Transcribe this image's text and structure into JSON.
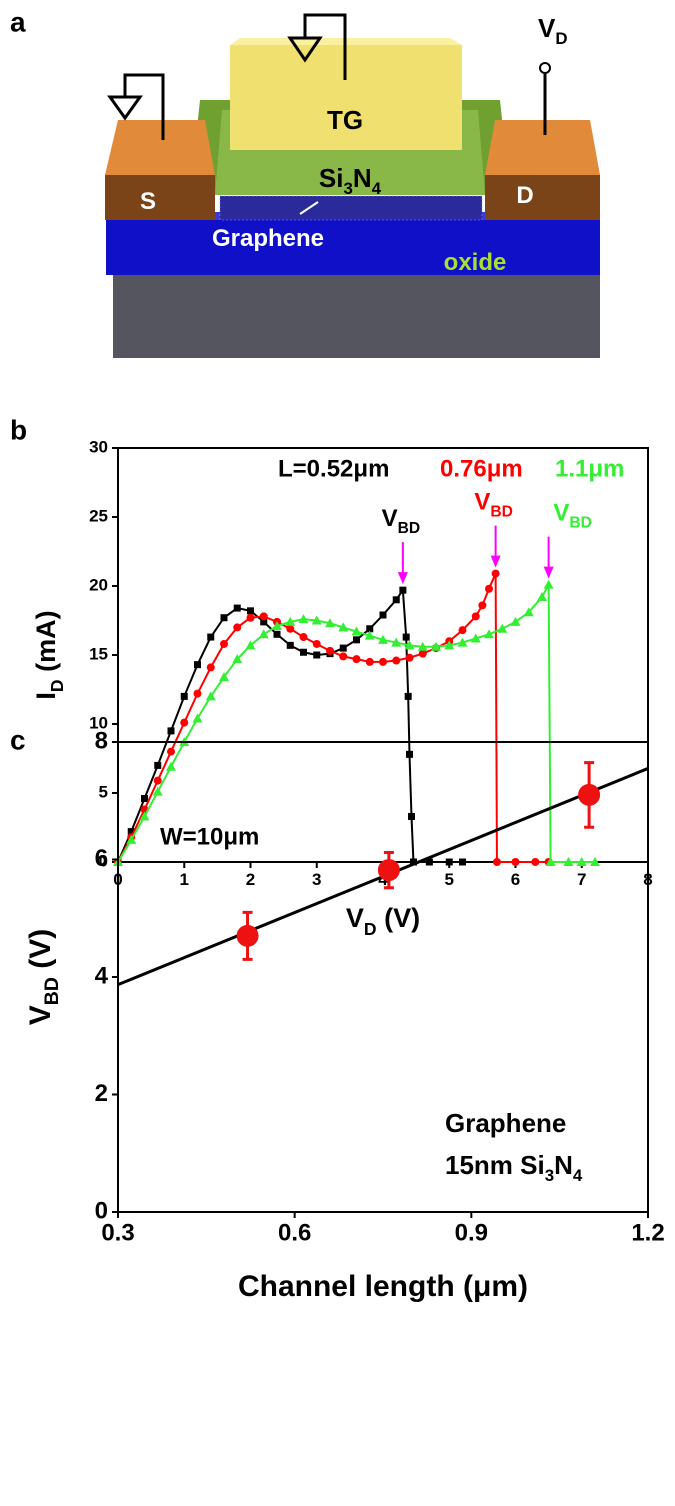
{
  "panels": [
    "a",
    "b",
    "c"
  ],
  "diagram": {
    "labels": {
      "vd": [
        "V",
        "D"
      ],
      "tg": [
        "TG"
      ],
      "si3n4": [
        "Si",
        "3",
        "N",
        "4"
      ],
      "s": [
        "S"
      ],
      "d": [
        "D"
      ],
      "graphene": [
        "Graphene"
      ],
      "oxide": [
        "oxide"
      ]
    }
  },
  "chart_data": [
    {
      "type": "line",
      "x_label": [
        "V",
        "D",
        " (V)"
      ],
      "y_label": [
        "I",
        "D",
        " (mA)"
      ],
      "xlim": [
        0,
        8
      ],
      "xticks": [
        0,
        1,
        2,
        3,
        4,
        5,
        6,
        7,
        8
      ],
      "ylim": [
        0,
        30
      ],
      "yticks": [
        0,
        5,
        10,
        15,
        20,
        25,
        30
      ],
      "note": "W=10μm",
      "series": [
        {
          "color": "#000000",
          "marker": "square",
          "length_label": "L=0.52μm",
          "breakdown_label": [
            "V",
            "BD"
          ],
          "x": [
            0,
            0.2,
            0.4,
            0.6,
            0.8,
            1.0,
            1.2,
            1.4,
            1.6,
            1.8,
            2.0,
            2.2,
            2.4,
            2.6,
            2.8,
            3.0,
            3.2,
            3.4,
            3.6,
            3.8,
            4.0,
            4.2,
            4.3,
            4.35,
            4.38,
            4.4,
            4.43,
            4.46,
            4.7,
            5.0,
            5.2
          ],
          "values": [
            0,
            2.2,
            4.6,
            7,
            9.5,
            12,
            14.3,
            16.3,
            17.7,
            18.4,
            18.2,
            17.4,
            16.5,
            15.7,
            15.2,
            15.0,
            15.1,
            15.5,
            16.1,
            16.9,
            17.9,
            19.0,
            19.7,
            16.3,
            12,
            7.8,
            3.3,
            0,
            0,
            0,
            0
          ]
        },
        {
          "color": "#ff0000",
          "marker": "circle",
          "length_label": "0.76μm",
          "breakdown_label": [
            "V",
            "BD"
          ],
          "x": [
            0,
            0.2,
            0.4,
            0.6,
            0.8,
            1.0,
            1.2,
            1.4,
            1.6,
            1.8,
            2.0,
            2.2,
            2.4,
            2.6,
            2.8,
            3.0,
            3.2,
            3.4,
            3.6,
            3.8,
            4.0,
            4.2,
            4.4,
            4.6,
            4.8,
            5.0,
            5.2,
            5.4,
            5.5,
            5.6,
            5.7,
            5.72,
            6.0,
            6.3,
            6.5
          ],
          "values": [
            0,
            1.8,
            3.8,
            5.9,
            8,
            10.1,
            12.2,
            14.1,
            15.8,
            17.0,
            17.7,
            17.8,
            17.4,
            16.9,
            16.3,
            15.8,
            15.3,
            14.9,
            14.7,
            14.5,
            14.5,
            14.6,
            14.8,
            15.1,
            15.5,
            16.0,
            16.8,
            17.8,
            18.6,
            19.8,
            20.9,
            0,
            0,
            0,
            0
          ]
        },
        {
          "color": "#33ee33",
          "marker": "triangle",
          "length_label": "1.1μm",
          "breakdown_label": [
            "V",
            "BD"
          ],
          "x": [
            0,
            0.2,
            0.4,
            0.6,
            0.8,
            1.0,
            1.2,
            1.4,
            1.6,
            1.8,
            2.0,
            2.2,
            2.4,
            2.6,
            2.8,
            3.0,
            3.2,
            3.4,
            3.6,
            3.8,
            4.0,
            4.2,
            4.4,
            4.6,
            4.8,
            5.0,
            5.2,
            5.4,
            5.6,
            5.8,
            6.0,
            6.2,
            6.4,
            6.5,
            6.53,
            6.8,
            7.0,
            7.2
          ],
          "values": [
            0,
            1.6,
            3.3,
            5.1,
            6.9,
            8.7,
            10.4,
            12.0,
            13.4,
            14.7,
            15.7,
            16.5,
            17.1,
            17.4,
            17.6,
            17.5,
            17.3,
            17.0,
            16.7,
            16.4,
            16.1,
            15.9,
            15.7,
            15.6,
            15.6,
            15.7,
            15.9,
            16.2,
            16.5,
            16.9,
            17.4,
            18.1,
            19.2,
            20.1,
            0,
            0,
            0,
            0
          ]
        }
      ]
    },
    {
      "type": "scatter",
      "x_label": [
        "Channel length (μm)"
      ],
      "y_label": [
        "V",
        "BD",
        " (V)"
      ],
      "xlim": [
        0.3,
        1.2
      ],
      "xticks": [
        0.3,
        0.6,
        0.9,
        1.2
      ],
      "ylim": [
        0,
        8
      ],
      "yticks": [
        0,
        2,
        4,
        6,
        8
      ],
      "annotation_lines": [
        [
          "Graphene"
        ],
        [
          "15nm Si",
          "3",
          "N",
          "4"
        ]
      ],
      "series": [
        {
          "color": "#ee1111",
          "x": [
            0.52,
            0.76,
            1.1
          ],
          "values": [
            4.7,
            5.82,
            7.1
          ],
          "errors": [
            0.4,
            0.3,
            0.55
          ]
        }
      ],
      "fit": {
        "color": "#000000",
        "x": [
          0.3,
          1.2
        ],
        "values": [
          3.87,
          7.55
        ]
      }
    }
  ]
}
